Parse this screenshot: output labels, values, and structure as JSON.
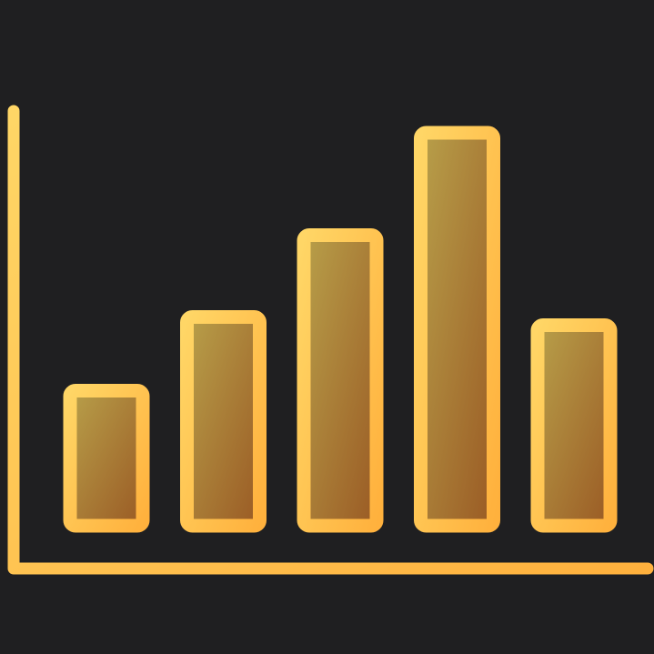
{
  "colors": {
    "background": "#1f1f21",
    "stroke_start": "#ffd666",
    "stroke_end": "#ffb13d",
    "fill_start": "#b8a04a",
    "fill_end": "#9a5a24"
  },
  "chart_data": {
    "type": "bar",
    "title": "",
    "xlabel": "",
    "ylabel": "",
    "categories": [
      "",
      "",
      "",
      "",
      ""
    ],
    "values": [
      33,
      51,
      71,
      96,
      49
    ],
    "ylim": [
      0,
      100
    ],
    "grid": false,
    "legend": "none"
  }
}
